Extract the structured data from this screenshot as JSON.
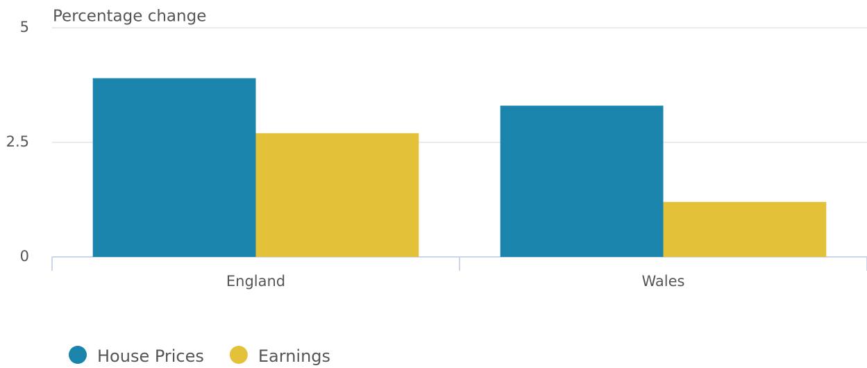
{
  "chart_data": {
    "type": "bar",
    "y_axis_label": "Percentage change",
    "categories": [
      "England",
      "Wales"
    ],
    "series": [
      {
        "name": "House Prices",
        "color": "#1a84ad",
        "values": [
          3.9,
          3.3
        ]
      },
      {
        "name": "Earnings",
        "color": "#e3c23a",
        "values": [
          2.7,
          1.2
        ]
      }
    ],
    "ylim": [
      0,
      5
    ],
    "yticks": [
      0,
      2.5,
      5
    ],
    "grid": true,
    "legend": "bottom-left"
  }
}
